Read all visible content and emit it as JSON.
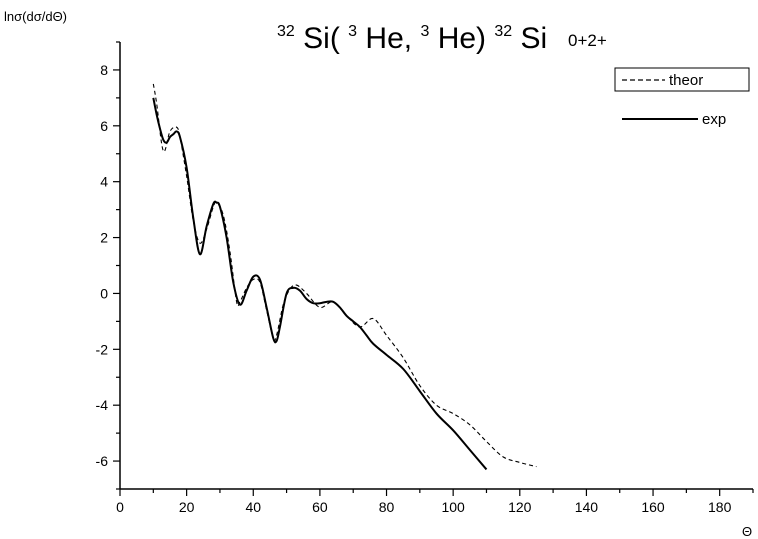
{
  "chart_data": {
    "type": "line",
    "title": {
      "sup1": "32",
      "part1": "Si(",
      "sup2": "3",
      "part2": "He,",
      "sup3": "3",
      "part3": "He)",
      "sup4": "32",
      "part4": "Si"
    },
    "subtitle": "0+2+",
    "ylabel": "lnσ(dσ/dΘ)",
    "xlabel": "Θ",
    "xlim": [
      0,
      190
    ],
    "ylim": [
      -7,
      9
    ],
    "xticks": [
      0,
      20,
      40,
      60,
      80,
      100,
      120,
      140,
      160,
      180
    ],
    "yticks": [
      -6,
      -4,
      -2,
      0,
      2,
      4,
      6,
      8
    ],
    "legend_position": "top-right",
    "series": [
      {
        "name": "theor",
        "style": "dashed",
        "x": [
          10,
          11,
          13,
          15,
          17,
          18,
          20,
          22,
          24,
          26,
          28,
          29,
          31,
          33,
          35,
          36,
          38,
          40,
          42,
          44,
          46,
          47,
          49,
          51,
          53,
          56,
          60,
          64,
          68,
          72,
          76,
          80,
          85,
          90,
          95,
          100,
          105,
          110,
          115,
          120,
          125
        ],
        "values": [
          7.5,
          6.8,
          5.1,
          5.8,
          5.95,
          5.6,
          4.2,
          2.6,
          1.8,
          2.3,
          3.1,
          3.25,
          2.8,
          1.5,
          -0.3,
          -0.3,
          0.2,
          0.5,
          0.4,
          -0.6,
          -1.6,
          -1.5,
          -0.4,
          0.15,
          0.3,
          0.0,
          -0.5,
          -0.3,
          -0.8,
          -1.2,
          -0.9,
          -1.5,
          -2.3,
          -3.3,
          -4.0,
          -4.3,
          -4.7,
          -5.3,
          -5.85,
          -6.05,
          -6.2
        ]
      },
      {
        "name": "exp",
        "style": "solid",
        "x": [
          10,
          11,
          12,
          13,
          14,
          15,
          16,
          17,
          18,
          20,
          22,
          24,
          26,
          28,
          29,
          30,
          32,
          34,
          36,
          38,
          40,
          42,
          44,
          46,
          47,
          48,
          50,
          52,
          54,
          56,
          58,
          60,
          62,
          64,
          66,
          68,
          70,
          72,
          74,
          76,
          80,
          85,
          90,
          95,
          100,
          105,
          110
        ],
        "values": [
          7.0,
          6.4,
          5.9,
          5.5,
          5.4,
          5.6,
          5.7,
          5.8,
          5.6,
          4.5,
          2.7,
          1.4,
          2.4,
          3.2,
          3.25,
          3.1,
          2.0,
          0.4,
          -0.4,
          0.1,
          0.6,
          0.5,
          -0.5,
          -1.6,
          -1.7,
          -1.2,
          0.0,
          0.2,
          0.1,
          -0.2,
          -0.35,
          -0.35,
          -0.3,
          -0.3,
          -0.5,
          -0.8,
          -1.0,
          -1.2,
          -1.5,
          -1.8,
          -2.2,
          -2.7,
          -3.5,
          -4.3,
          -4.9,
          -5.6,
          -6.3
        ]
      }
    ]
  }
}
